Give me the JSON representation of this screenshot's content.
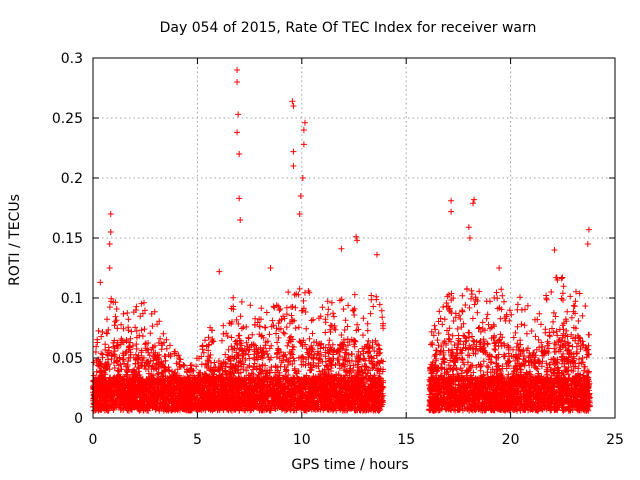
{
  "chart_data": {
    "type": "scatter",
    "title": "Day 054 of 2015, Rate Of TEC Index for receiver warn",
    "xlabel": "GPS time / hours",
    "ylabel": "ROTI / TECUs",
    "xlim": [
      0,
      25
    ],
    "ylim": [
      0,
      0.3
    ],
    "grid": true,
    "marker": "+",
    "color": "#ff0000",
    "x_ticks": [
      0,
      5,
      10,
      15,
      20,
      25
    ],
    "x_tick_labels": [
      "0",
      "5",
      "10",
      "15",
      "20",
      "25"
    ],
    "y_ticks": [
      0,
      0.05,
      0.1,
      0.15,
      0.2,
      0.25,
      0.3
    ],
    "y_tick_labels": [
      "0",
      "0.05",
      "0.1",
      "0.15",
      "0.2",
      "0.25",
      "0.3"
    ],
    "data_segments": [
      {
        "x_start": 0.0,
        "x_end": 13.9
      },
      {
        "x_start": 16.1,
        "x_end": 23.8
      }
    ],
    "notable_points": [
      {
        "x": 6.9,
        "y": 0.29
      },
      {
        "x": 6.9,
        "y": 0.28
      },
      {
        "x": 6.95,
        "y": 0.253
      },
      {
        "x": 6.9,
        "y": 0.238
      },
      {
        "x": 7.0,
        "y": 0.22
      },
      {
        "x": 7.0,
        "y": 0.183
      },
      {
        "x": 7.05,
        "y": 0.165
      },
      {
        "x": 9.55,
        "y": 0.264
      },
      {
        "x": 9.6,
        "y": 0.26
      },
      {
        "x": 9.6,
        "y": 0.222
      },
      {
        "x": 9.6,
        "y": 0.21
      },
      {
        "x": 10.15,
        "y": 0.246
      },
      {
        "x": 10.1,
        "y": 0.24
      },
      {
        "x": 10.1,
        "y": 0.228
      },
      {
        "x": 10.05,
        "y": 0.2
      },
      {
        "x": 9.95,
        "y": 0.185
      },
      {
        "x": 9.9,
        "y": 0.17
      },
      {
        "x": 0.85,
        "y": 0.17
      },
      {
        "x": 0.85,
        "y": 0.155
      },
      {
        "x": 0.8,
        "y": 0.145
      },
      {
        "x": 0.8,
        "y": 0.125
      },
      {
        "x": 17.15,
        "y": 0.181
      },
      {
        "x": 17.15,
        "y": 0.172
      },
      {
        "x": 18.25,
        "y": 0.182
      },
      {
        "x": 18.2,
        "y": 0.179
      },
      {
        "x": 18.0,
        "y": 0.159
      },
      {
        "x": 18.05,
        "y": 0.15
      },
      {
        "x": 23.75,
        "y": 0.157
      },
      {
        "x": 23.7,
        "y": 0.145
      },
      {
        "x": 12.6,
        "y": 0.151
      },
      {
        "x": 12.65,
        "y": 0.148
      },
      {
        "x": 13.6,
        "y": 0.136
      },
      {
        "x": 11.9,
        "y": 0.141
      },
      {
        "x": 22.1,
        "y": 0.14
      },
      {
        "x": 8.5,
        "y": 0.125
      },
      {
        "x": 6.05,
        "y": 0.122
      },
      {
        "x": 0.35,
        "y": 0.113
      },
      {
        "x": 19.45,
        "y": 0.125
      }
    ],
    "envelope": [
      {
        "x": 0.0,
        "y": 0.045
      },
      {
        "x": 0.3,
        "y": 0.07
      },
      {
        "x": 0.6,
        "y": 0.08
      },
      {
        "x": 1.0,
        "y": 0.1
      },
      {
        "x": 1.5,
        "y": 0.09
      },
      {
        "x": 2.0,
        "y": 0.085
      },
      {
        "x": 2.5,
        "y": 0.1
      },
      {
        "x": 3.0,
        "y": 0.085
      },
      {
        "x": 3.5,
        "y": 0.06
      },
      {
        "x": 4.0,
        "y": 0.05
      },
      {
        "x": 4.5,
        "y": 0.035
      },
      {
        "x": 5.0,
        "y": 0.045
      },
      {
        "x": 5.5,
        "y": 0.08
      },
      {
        "x": 6.0,
        "y": 0.06
      },
      {
        "x": 6.5,
        "y": 0.09
      },
      {
        "x": 7.0,
        "y": 0.1
      },
      {
        "x": 7.5,
        "y": 0.095
      },
      {
        "x": 8.0,
        "y": 0.09
      },
      {
        "x": 8.5,
        "y": 0.1
      },
      {
        "x": 9.0,
        "y": 0.085
      },
      {
        "x": 9.5,
        "y": 0.11
      },
      {
        "x": 10.0,
        "y": 0.1
      },
      {
        "x": 10.5,
        "y": 0.1
      },
      {
        "x": 11.0,
        "y": 0.095
      },
      {
        "x": 11.5,
        "y": 0.09
      },
      {
        "x": 12.0,
        "y": 0.095
      },
      {
        "x": 12.5,
        "y": 0.1
      },
      {
        "x": 13.0,
        "y": 0.09
      },
      {
        "x": 13.5,
        "y": 0.1
      },
      {
        "x": 13.9,
        "y": 0.085
      },
      {
        "x": 16.1,
        "y": 0.06
      },
      {
        "x": 16.5,
        "y": 0.09
      },
      {
        "x": 17.0,
        "y": 0.1
      },
      {
        "x": 17.5,
        "y": 0.1
      },
      {
        "x": 18.0,
        "y": 0.11
      },
      {
        "x": 18.5,
        "y": 0.1
      },
      {
        "x": 19.0,
        "y": 0.1
      },
      {
        "x": 19.5,
        "y": 0.11
      },
      {
        "x": 20.0,
        "y": 0.09
      },
      {
        "x": 20.5,
        "y": 0.1
      },
      {
        "x": 21.0,
        "y": 0.085
      },
      {
        "x": 21.5,
        "y": 0.09
      },
      {
        "x": 22.0,
        "y": 0.11
      },
      {
        "x": 22.5,
        "y": 0.115
      },
      {
        "x": 23.0,
        "y": 0.11
      },
      {
        "x": 23.5,
        "y": 0.1
      },
      {
        "x": 23.8,
        "y": 0.09
      }
    ]
  }
}
